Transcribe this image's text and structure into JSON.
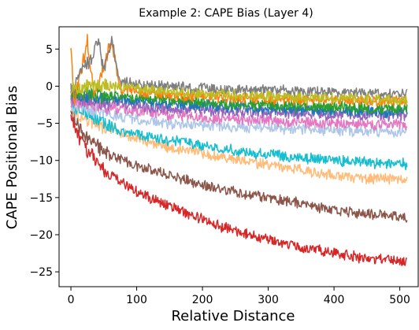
{
  "chart_data": {
    "type": "line",
    "title": "Example 2: CAPE Bias (Layer 4)",
    "xlabel": "Relative Distance",
    "ylabel": "CAPE Positional Bias",
    "xlim": [
      -18,
      528
    ],
    "ylim": [
      -27,
      8
    ],
    "xticks": [
      0,
      100,
      200,
      300,
      400,
      500
    ],
    "yticks": [
      5,
      0,
      -5,
      -10,
      -15,
      -20,
      -25
    ],
    "grid": false,
    "legend": "none",
    "x_range": [
      0,
      511
    ],
    "series": [
      {
        "color": "#d62728",
        "points": [
          [
            0,
            -3.5
          ],
          [
            10,
            -6.5
          ],
          [
            25,
            -8.8
          ],
          [
            50,
            -11.2
          ],
          [
            75,
            -12.8
          ],
          [
            100,
            -14.2
          ],
          [
            150,
            -16.2
          ],
          [
            200,
            -18.0
          ],
          [
            250,
            -19.5
          ],
          [
            300,
            -20.7
          ],
          [
            350,
            -21.7
          ],
          [
            400,
            -22.5
          ],
          [
            450,
            -23.2
          ],
          [
            511,
            -23.5
          ]
        ]
      },
      {
        "color": "#8c564b",
        "points": [
          [
            0,
            -3.2
          ],
          [
            10,
            -5.2
          ],
          [
            25,
            -7.0
          ],
          [
            50,
            -8.8
          ],
          [
            75,
            -9.8
          ],
          [
            100,
            -10.7
          ],
          [
            150,
            -12.0
          ],
          [
            200,
            -13.3
          ],
          [
            250,
            -14.2
          ],
          [
            300,
            -15.0
          ],
          [
            350,
            -15.8
          ],
          [
            400,
            -16.7
          ],
          [
            450,
            -17.2
          ],
          [
            511,
            -17.6
          ]
        ]
      },
      {
        "color": "#ffbb78",
        "points": [
          [
            0,
            -3.0
          ],
          [
            25,
            -4.5
          ],
          [
            50,
            -5.5
          ],
          [
            75,
            -6.2
          ],
          [
            100,
            -7.2
          ],
          [
            150,
            -8.2
          ],
          [
            200,
            -9.0
          ],
          [
            250,
            -9.9
          ],
          [
            300,
            -10.6
          ],
          [
            350,
            -11.3
          ],
          [
            400,
            -12.0
          ],
          [
            450,
            -12.4
          ],
          [
            511,
            -12.6
          ]
        ]
      },
      {
        "color": "#17becf",
        "points": [
          [
            0,
            -2.8
          ],
          [
            25,
            -3.5
          ],
          [
            50,
            -5.0
          ],
          [
            75,
            -6.0
          ],
          [
            100,
            -6.5
          ],
          [
            150,
            -7.3
          ],
          [
            200,
            -8.0
          ],
          [
            250,
            -8.7
          ],
          [
            300,
            -9.2
          ],
          [
            350,
            -9.6
          ],
          [
            400,
            -10.0
          ],
          [
            450,
            -10.3
          ],
          [
            511,
            -10.5
          ]
        ]
      },
      {
        "color": "#aec7e8",
        "points": [
          [
            0,
            -2.5
          ],
          [
            25,
            -3.0
          ],
          [
            50,
            -3.8
          ],
          [
            100,
            -4.5
          ],
          [
            150,
            -5.0
          ],
          [
            200,
            -5.3
          ],
          [
            250,
            -5.5
          ],
          [
            300,
            -5.6
          ],
          [
            350,
            -5.8
          ],
          [
            400,
            -6.0
          ],
          [
            450,
            -6.1
          ],
          [
            511,
            -6.2
          ]
        ]
      },
      {
        "color": "#e377c2",
        "points": [
          [
            0,
            -2.0
          ],
          [
            50,
            -2.8
          ],
          [
            100,
            -3.3
          ],
          [
            150,
            -3.8
          ],
          [
            200,
            -4.2
          ],
          [
            250,
            -4.5
          ],
          [
            300,
            -4.7
          ],
          [
            350,
            -4.9
          ],
          [
            400,
            -5.0
          ],
          [
            450,
            -5.1
          ],
          [
            511,
            -5.2
          ]
        ]
      },
      {
        "color": "#9467bd",
        "points": [
          [
            0,
            -1.5
          ],
          [
            50,
            -2.2
          ],
          [
            100,
            -2.7
          ],
          [
            150,
            -3.0
          ],
          [
            200,
            -3.3
          ],
          [
            250,
            -3.5
          ],
          [
            300,
            -3.6
          ],
          [
            350,
            -3.7
          ],
          [
            400,
            -3.8
          ],
          [
            450,
            -3.9
          ],
          [
            511,
            -4.0
          ]
        ]
      },
      {
        "color": "#1f77b4",
        "points": [
          [
            0,
            -1.2
          ],
          [
            50,
            -1.7
          ],
          [
            100,
            -2.0
          ],
          [
            150,
            -2.3
          ],
          [
            200,
            -2.6
          ],
          [
            250,
            -2.8
          ],
          [
            300,
            -3.0
          ],
          [
            350,
            -3.2
          ],
          [
            400,
            -3.3
          ],
          [
            450,
            -3.4
          ],
          [
            511,
            -3.5
          ]
        ]
      },
      {
        "color": "#2ca02c",
        "points": [
          [
            0,
            -1.0
          ],
          [
            50,
            -1.3
          ],
          [
            100,
            -1.6
          ],
          [
            150,
            -1.9
          ],
          [
            200,
            -2.2
          ],
          [
            250,
            -2.4
          ],
          [
            300,
            -2.6
          ],
          [
            350,
            -2.7
          ],
          [
            400,
            -2.8
          ],
          [
            450,
            -2.9
          ],
          [
            511,
            -3.0
          ]
        ]
      },
      {
        "color": "#ff7f0e",
        "points": [
          [
            0,
            4.5
          ],
          [
            5,
            -2.0
          ],
          [
            25,
            6.0
          ],
          [
            35,
            -1.0
          ],
          [
            50,
            3.0
          ],
          [
            62,
            6.0
          ],
          [
            75,
            -0.3
          ],
          [
            100,
            -0.8
          ],
          [
            150,
            -1.2
          ],
          [
            200,
            -1.4
          ],
          [
            250,
            -1.6
          ],
          [
            300,
            -1.7
          ],
          [
            350,
            -1.8
          ],
          [
            400,
            -1.9
          ],
          [
            450,
            -2.0
          ],
          [
            511,
            -2.0
          ]
        ]
      },
      {
        "color": "#7f7f7f",
        "points": [
          [
            0,
            -0.5
          ],
          [
            25,
            3.0
          ],
          [
            43,
            6.0
          ],
          [
            50,
            2.0
          ],
          [
            62,
            6.2
          ],
          [
            75,
            0.5
          ],
          [
            100,
            0.3
          ],
          [
            150,
            0.0
          ],
          [
            200,
            -0.3
          ],
          [
            250,
            -0.5
          ],
          [
            300,
            -0.5
          ],
          [
            350,
            -0.7
          ],
          [
            400,
            -0.8
          ],
          [
            450,
            -0.9
          ],
          [
            511,
            -1.0
          ]
        ]
      },
      {
        "color": "#bcbd22",
        "points": [
          [
            0,
            -0.3
          ],
          [
            50,
            0.2
          ],
          [
            100,
            -0.3
          ],
          [
            150,
            -0.7
          ],
          [
            200,
            -1.0
          ],
          [
            250,
            -1.2
          ],
          [
            300,
            -1.4
          ],
          [
            350,
            -1.5
          ],
          [
            400,
            -1.6
          ],
          [
            450,
            -1.7
          ],
          [
            511,
            -1.8
          ]
        ]
      }
    ]
  }
}
